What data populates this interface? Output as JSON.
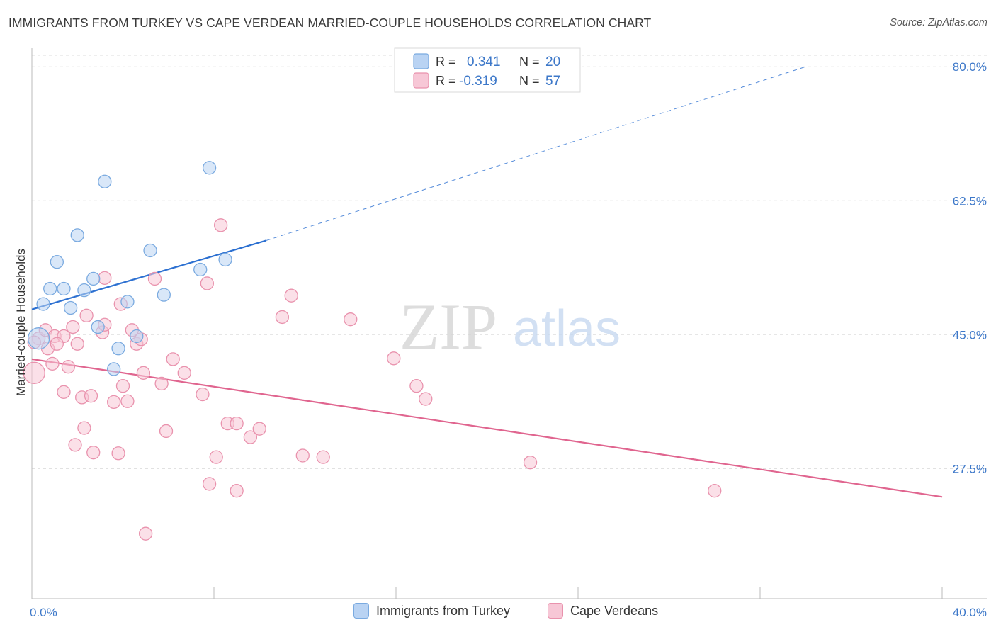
{
  "title": "IMMIGRANTS FROM TURKEY VS CAPE VERDEAN MARRIED-COUPLE HOUSEHOLDS CORRELATION CHART",
  "source": "Source: ZipAtlas.com",
  "watermark": {
    "zip": "ZIP",
    "atlas": "atlas"
  },
  "colors": {
    "blue_fill": "#b9d3f3",
    "blue_stroke": "#7aaae0",
    "blue_line": "#2c70d1",
    "pink_fill": "#f7c7d6",
    "pink_stroke": "#e992ad",
    "pink_line": "#e0658f",
    "axis_text": "#3d78c9"
  },
  "legend_top": {
    "rows": [
      {
        "series": "Immigrants from Turkey",
        "r_label": "R =",
        "r_value": "0.341",
        "n_label": "N =",
        "n_value": "20"
      },
      {
        "series": "Cape Verdeans",
        "r_label": "R =",
        "r_value": "-0.319",
        "n_label": "N =",
        "n_value": "57"
      }
    ]
  },
  "legend_bottom": [
    "Immigrants from Turkey",
    "Cape Verdeans"
  ],
  "chart_data": {
    "type": "scatter",
    "title": "IMMIGRANTS FROM TURKEY VS CAPE VERDEAN MARRIED-COUPLE HOUSEHOLDS CORRELATION CHART",
    "xlabel": "",
    "ylabel": "Married-couple Households",
    "xlim": [
      0,
      40
    ],
    "ylim": [
      10.5,
      81.5
    ],
    "x_tick_labels": [
      {
        "value": 0,
        "label": "0.0%"
      },
      {
        "value": 40,
        "label": "40.0%"
      }
    ],
    "x_minor_ticks": [
      0,
      4,
      8,
      12,
      16,
      20,
      24,
      28,
      32,
      36,
      40
    ],
    "y_ticks": [
      {
        "value": 80,
        "label": "80.0%"
      },
      {
        "value": 62.5,
        "label": "62.5%"
      },
      {
        "value": 45,
        "label": "45.0%"
      },
      {
        "value": 27.5,
        "label": "27.5%"
      }
    ],
    "grid": true,
    "series": [
      {
        "name": "Immigrants from Turkey",
        "color": "blue",
        "R": 0.341,
        "N": 20,
        "points": [
          [
            0.3,
            44.5
          ],
          [
            0.5,
            49.0
          ],
          [
            0.8,
            51.0
          ],
          [
            1.1,
            54.5
          ],
          [
            1.4,
            51.0
          ],
          [
            1.7,
            48.5
          ],
          [
            2.0,
            58.0
          ],
          [
            2.3,
            50.8
          ],
          [
            2.7,
            52.3
          ],
          [
            2.9,
            46.0
          ],
          [
            3.2,
            65.0
          ],
          [
            3.6,
            40.5
          ],
          [
            3.8,
            43.2
          ],
          [
            4.2,
            49.3
          ],
          [
            4.6,
            44.8
          ],
          [
            5.2,
            56.0
          ],
          [
            5.8,
            50.2
          ],
          [
            7.4,
            53.5
          ],
          [
            7.8,
            66.8
          ],
          [
            8.5,
            54.8
          ]
        ],
        "trend": {
          "x0": 0.0,
          "y0": 48.3,
          "x1": 10.3,
          "y1": 57.3,
          "dash_x1": 34.0,
          "dash_y1": 80.0
        }
      },
      {
        "name": "Cape Verdeans",
        "color": "pink",
        "R": -0.319,
        "N": 57,
        "points": [
          [
            0.1,
            40.0
          ],
          [
            0.3,
            44.5
          ],
          [
            0.6,
            45.6
          ],
          [
            0.7,
            43.2
          ],
          [
            0.9,
            41.2
          ],
          [
            1.0,
            44.8
          ],
          [
            1.4,
            44.8
          ],
          [
            1.1,
            43.8
          ],
          [
            1.4,
            37.5
          ],
          [
            1.6,
            40.8
          ],
          [
            1.8,
            46.0
          ],
          [
            2.0,
            43.8
          ],
          [
            1.9,
            30.6
          ],
          [
            2.2,
            36.8
          ],
          [
            2.3,
            32.8
          ],
          [
            2.4,
            47.5
          ],
          [
            2.6,
            37.0
          ],
          [
            2.7,
            29.6
          ],
          [
            3.1,
            45.3
          ],
          [
            3.2,
            46.3
          ],
          [
            3.2,
            52.4
          ],
          [
            3.6,
            36.2
          ],
          [
            3.8,
            29.5
          ],
          [
            3.9,
            49.0
          ],
          [
            4.0,
            38.3
          ],
          [
            4.2,
            36.3
          ],
          [
            4.4,
            45.6
          ],
          [
            4.6,
            43.8
          ],
          [
            4.8,
            44.4
          ],
          [
            4.9,
            40.0
          ],
          [
            5.0,
            19.0
          ],
          [
            5.4,
            52.3
          ],
          [
            5.7,
            38.6
          ],
          [
            5.9,
            32.4
          ],
          [
            6.2,
            41.8
          ],
          [
            6.7,
            40.0
          ],
          [
            7.5,
            37.2
          ],
          [
            7.7,
            51.7
          ],
          [
            7.8,
            25.5
          ],
          [
            8.1,
            29.0
          ],
          [
            8.3,
            59.3
          ],
          [
            8.6,
            33.4
          ],
          [
            9.0,
            33.4
          ],
          [
            9.0,
            24.6
          ],
          [
            9.6,
            31.6
          ],
          [
            10.0,
            32.7
          ],
          [
            11.0,
            47.3
          ],
          [
            11.4,
            50.1
          ],
          [
            11.9,
            29.2
          ],
          [
            12.8,
            29.0
          ],
          [
            14.0,
            47.0
          ],
          [
            15.9,
            41.9
          ],
          [
            16.9,
            38.3
          ],
          [
            17.3,
            36.6
          ],
          [
            21.9,
            28.3
          ],
          [
            30.0,
            24.6
          ],
          [
            0.1,
            44.0
          ]
        ],
        "trend": {
          "x0": 0.0,
          "y0": 41.8,
          "x1": 40.0,
          "y1": 23.8
        }
      }
    ]
  }
}
